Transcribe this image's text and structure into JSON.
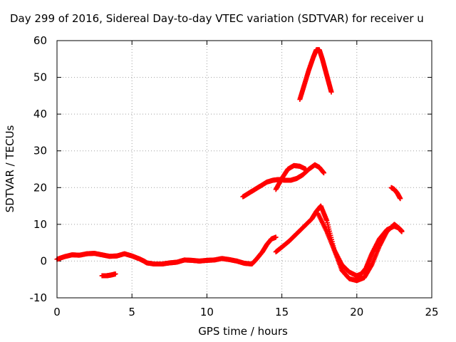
{
  "chart_data": {
    "type": "scatter",
    "title": "Day 299 of 2016, Sidereal Day-to-day VTEC variation (SDTVAR) for receiver u",
    "xlabel": "GPS time / hours",
    "ylabel": "SDTVAR / TECUs",
    "xlim": [
      0,
      25
    ],
    "ylim": [
      -10,
      60
    ],
    "xticks": [
      0,
      5,
      10,
      15,
      20,
      25
    ],
    "yticks": [
      -10,
      0,
      10,
      20,
      30,
      40,
      50,
      60
    ],
    "grid": true,
    "marker": "+",
    "color": "#ff0000",
    "series": [
      {
        "x": [
          0.0,
          0.5,
          1.0,
          1.5,
          2.0,
          2.5,
          3.0,
          3.5,
          4.0,
          4.5,
          5.0,
          5.5,
          5.8,
          6.0,
          6.5,
          7.0,
          7.5,
          8.0,
          8.5,
          9.0,
          9.5,
          10.0,
          10.5,
          11.0,
          11.5,
          12.0,
          12.5,
          13.0,
          13.3,
          13.7,
          14.0,
          14.3,
          14.6
        ],
        "y": [
          0.5,
          1.2,
          1.7,
          1.6,
          2.0,
          2.1,
          1.7,
          1.3,
          1.4,
          2.0,
          1.4,
          0.6,
          0.0,
          -0.5,
          -0.8,
          -0.8,
          -0.5,
          -0.3,
          0.3,
          0.2,
          0.0,
          0.2,
          0.3,
          0.7,
          0.4,
          0.0,
          -0.6,
          -0.8,
          0.5,
          2.5,
          4.5,
          6.0,
          6.5
        ]
      },
      {
        "x": [
          14.6,
          15.0,
          15.5,
          16.0,
          16.5,
          17.0,
          17.3,
          17.6,
          18.0,
          18.5,
          19.0,
          19.5,
          20.0,
          20.5,
          21.0,
          21.5,
          22.0,
          22.5,
          22.8,
          23.0
        ],
        "y": [
          2.5,
          3.8,
          5.5,
          7.5,
          9.5,
          11.5,
          13.5,
          15.0,
          11.0,
          3.0,
          -2.5,
          -4.8,
          -5.3,
          -4.5,
          -1.0,
          4.0,
          8.0,
          10.0,
          9.0,
          8.0
        ]
      },
      {
        "x": [
          17.4,
          18.0,
          18.5,
          19.0,
          19.5,
          20.0,
          20.3,
          20.6,
          21.0,
          21.5,
          22.0,
          22.5,
          22.8,
          23.0
        ],
        "y": [
          13.0,
          8.0,
          3.0,
          -1.0,
          -3.0,
          -4.0,
          -3.5,
          -2.0,
          2.0,
          6.0,
          8.5,
          9.5,
          9.0,
          8.2
        ]
      },
      {
        "x": [
          3.0,
          3.3,
          3.6,
          3.9
        ],
        "y": [
          -4.0,
          -4.0,
          -3.8,
          -3.5
        ]
      },
      {
        "x": [
          12.4,
          12.8,
          13.2,
          13.6,
          14.0,
          14.4,
          14.8,
          15.2,
          15.6,
          16.0,
          16.4,
          16.8,
          17.2,
          17.5,
          17.8
        ],
        "y": [
          17.5,
          18.5,
          19.5,
          20.5,
          21.5,
          22.0,
          22.2,
          22.0,
          22.0,
          22.5,
          23.5,
          25.0,
          26.2,
          25.5,
          24.0
        ]
      },
      {
        "x": [
          14.6,
          15.0,
          15.4,
          15.8,
          16.2,
          16.6
        ],
        "y": [
          19.5,
          22.5,
          25.0,
          26.0,
          25.8,
          25.0
        ]
      },
      {
        "x": [
          16.2,
          16.5,
          16.8,
          17.1,
          17.3,
          17.5,
          17.7,
          17.9,
          18.1,
          18.3
        ],
        "y": [
          44.0,
          48.0,
          52.0,
          55.5,
          57.5,
          57.5,
          55.0,
          52.0,
          49.0,
          46.0
        ]
      },
      {
        "x": [
          22.3,
          22.5,
          22.7,
          22.9
        ],
        "y": [
          20.0,
          19.5,
          18.5,
          17.0
        ]
      }
    ]
  }
}
